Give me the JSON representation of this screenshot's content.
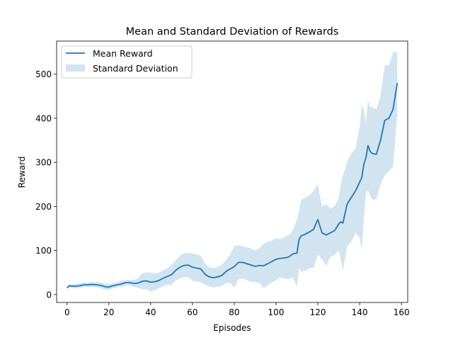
{
  "chart_data": {
    "type": "line",
    "title": "Mean and Standard Deviation of Rewards",
    "xlabel": "Episodes",
    "ylabel": "Reward",
    "xlim": [
      -5,
      163
    ],
    "ylim": [
      -18,
      575
    ],
    "xticks": [
      0,
      20,
      40,
      60,
      80,
      100,
      120,
      140,
      160
    ],
    "yticks": [
      0,
      100,
      200,
      300,
      400,
      500
    ],
    "grid": false,
    "legend": {
      "placement": "top-left",
      "entries": [
        "Mean Reward",
        "Standard Deviation"
      ]
    },
    "colors": {
      "mean": "#1f77b4",
      "std_fill": "#1f77b4",
      "std_alpha": 0.2
    },
    "series": [
      {
        "name": "Mean Reward",
        "x": [
          0,
          1,
          2,
          4,
          6,
          8,
          10,
          12,
          14,
          16,
          18,
          20,
          22,
          24,
          26,
          28,
          30,
          32,
          34,
          36,
          38,
          40,
          42,
          44,
          46,
          48,
          50,
          52,
          54,
          56,
          58,
          60,
          62,
          64,
          66,
          68,
          70,
          72,
          74,
          76,
          78,
          80,
          82,
          84,
          86,
          88,
          90,
          92,
          94,
          96,
          98,
          100,
          102,
          104,
          106,
          108,
          110,
          111,
          112,
          114,
          116,
          118,
          119,
          120,
          122,
          124,
          126,
          128,
          130,
          131,
          132,
          134,
          136,
          138,
          140,
          141,
          142,
          143,
          144,
          145,
          146,
          148,
          150,
          152,
          154,
          156,
          158
        ],
        "values": [
          15,
          20,
          19,
          19,
          20,
          22,
          22,
          23,
          22,
          21,
          18,
          17,
          20,
          22,
          24,
          27,
          27,
          25,
          26,
          30,
          31,
          28,
          29,
          32,
          37,
          41,
          45,
          55,
          62,
          66,
          67,
          62,
          60,
          58,
          46,
          40,
          38,
          40,
          43,
          52,
          58,
          63,
          73,
          73,
          70,
          67,
          64,
          66,
          65,
          70,
          75,
          80,
          82,
          83,
          85,
          92,
          94,
          125,
          133,
          137,
          142,
          148,
          160,
          170,
          140,
          135,
          140,
          145,
          160,
          165,
          162,
          205,
          220,
          235,
          255,
          265,
          295,
          310,
          338,
          325,
          320,
          318,
          350,
          395,
          400,
          420,
          480
        ]
      },
      {
        "name": "Standard Deviation",
        "x": [
          0,
          1,
          2,
          4,
          6,
          8,
          10,
          12,
          14,
          16,
          18,
          20,
          22,
          24,
          26,
          28,
          30,
          32,
          34,
          36,
          38,
          40,
          42,
          44,
          46,
          48,
          50,
          52,
          54,
          56,
          58,
          60,
          62,
          64,
          66,
          68,
          70,
          72,
          74,
          76,
          78,
          80,
          82,
          84,
          86,
          88,
          90,
          92,
          94,
          96,
          98,
          100,
          102,
          104,
          106,
          108,
          110,
          111,
          112,
          114,
          116,
          118,
          119,
          120,
          122,
          124,
          126,
          128,
          130,
          131,
          132,
          134,
          136,
          138,
          140,
          141,
          142,
          143,
          144,
          145,
          146,
          148,
          150,
          152,
          154,
          156,
          158
        ],
        "upper": [
          17,
          23,
          23,
          24,
          25,
          27,
          27,
          28,
          28,
          27,
          25,
          24,
          26,
          28,
          31,
          33,
          33,
          33,
          37,
          48,
          50,
          50,
          48,
          50,
          55,
          60,
          68,
          78,
          88,
          93,
          95,
          93,
          91,
          88,
          70,
          62,
          60,
          62,
          67,
          78,
          90,
          110,
          112,
          110,
          107,
          105,
          100,
          105,
          115,
          120,
          122,
          128,
          125,
          130,
          135,
          145,
          170,
          190,
          215,
          220,
          225,
          235,
          245,
          250,
          200,
          205,
          195,
          200,
          220,
          250,
          270,
          300,
          320,
          330,
          380,
          430,
          420,
          390,
          440,
          425,
          425,
          420,
          450,
          520,
          520,
          550,
          550
        ],
        "lower": [
          13,
          17,
          15,
          14,
          15,
          17,
          17,
          18,
          16,
          15,
          11,
          10,
          14,
          16,
          17,
          21,
          21,
          17,
          15,
          12,
          12,
          6,
          10,
          14,
          19,
          22,
          22,
          32,
          36,
          39,
          39,
          31,
          29,
          28,
          22,
          18,
          16,
          18,
          19,
          26,
          26,
          16,
          34,
          36,
          33,
          29,
          28,
          27,
          15,
          20,
          28,
          32,
          39,
          36,
          35,
          39,
          18,
          60,
          51,
          54,
          59,
          61,
          75,
          90,
          80,
          65,
          85,
          90,
          100,
          80,
          54,
          110,
          120,
          140,
          130,
          100,
          170,
          230,
          236,
          225,
          215,
          216,
          250,
          270,
          280,
          290,
          410
        ]
      }
    ]
  }
}
